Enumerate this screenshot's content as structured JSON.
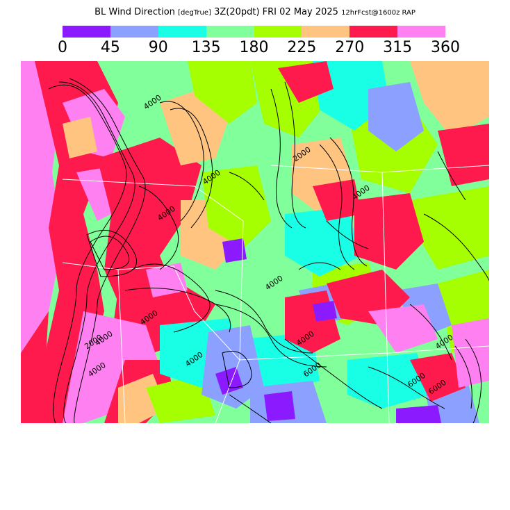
{
  "title": {
    "main": "BL Wind Direction",
    "unit": "[degTrue]",
    "valid": "3Z(20pdt) FRI 02 May 2025",
    "run": "12hrFcst@1600z RAP"
  },
  "legend": {
    "colors": [
      "#8b1aff",
      "#8ca0ff",
      "#19ffe6",
      "#80ff9a",
      "#a6ff00",
      "#ffc580",
      "#ff1a4d",
      "#ff80f0"
    ],
    "ticks": [
      "0",
      "45",
      "90",
      "135",
      "180",
      "225",
      "270",
      "315",
      "360"
    ]
  },
  "map": {
    "contour_labels": [
      "4000",
      "4000",
      "4000",
      "4000",
      "4000",
      "4000",
      "4000",
      "4000",
      "2000",
      "4000",
      "6000",
      "6000",
      "6000",
      "4000",
      "2000",
      "4000"
    ]
  }
}
